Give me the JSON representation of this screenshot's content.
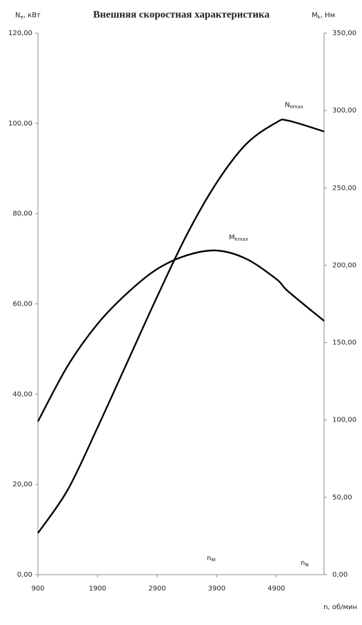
{
  "chart_data": {
    "type": "line",
    "title": "Внешняя скоростная характеристика",
    "y_label": {
      "main": "N",
      "sub": "e",
      "rest": ", кВт"
    },
    "y2_label": {
      "main": "M",
      "sub": "k",
      "rest": ", Нм"
    },
    "x_label": "n, об/мин",
    "x": [
      900,
      1400,
      1900,
      2400,
      2900,
      3400,
      3900,
      4400,
      4900,
      5100,
      5700
    ],
    "xlim": [
      900,
      5700
    ],
    "xticks": [
      900,
      1900,
      2900,
      3900,
      4900
    ],
    "ylim": [
      0,
      120
    ],
    "yticks": [
      {
        "value": 0,
        "label": "0,00"
      },
      {
        "value": 20,
        "label": "20,00"
      },
      {
        "value": 40,
        "label": "40,00"
      },
      {
        "value": 60,
        "label": "60,00"
      },
      {
        "value": 80,
        "label": "80,00"
      },
      {
        "value": 100,
        "label": "100,00"
      },
      {
        "value": 120,
        "label": "120,00"
      }
    ],
    "y2lim": [
      0,
      350
    ],
    "y2ticks": [
      {
        "value": 0,
        "label": "0,00"
      },
      {
        "value": 50,
        "label": "50,00"
      },
      {
        "value": 100,
        "label": "100,00"
      },
      {
        "value": 150,
        "label": "150,00"
      },
      {
        "value": 200,
        "label": "200,00"
      },
      {
        "value": 250,
        "label": "250,00"
      },
      {
        "value": 300,
        "label": "300,00"
      },
      {
        "value": 350,
        "label": "350,00"
      }
    ],
    "series": [
      {
        "color": "#000000",
        "values": [
          9.2,
          18.8,
          32.6,
          47.1,
          61.6,
          75.4,
          86.9,
          95.5,
          100.2,
          100.6,
          98.2
        ]
      },
      {
        "color": "#000000",
        "axis": "y2",
        "values": [
          99,
          135,
          162,
          182,
          197.5,
          206.4,
          209.5,
          204,
          191,
          183,
          164
        ]
      }
    ],
    "annotations": [
      {
        "main": "N",
        "sub": "emax"
      },
      {
        "main": "M",
        "sub": "kmax"
      },
      {
        "main": "n",
        "sub": "M"
      },
      {
        "main": "n",
        "sub": "N"
      }
    ]
  }
}
